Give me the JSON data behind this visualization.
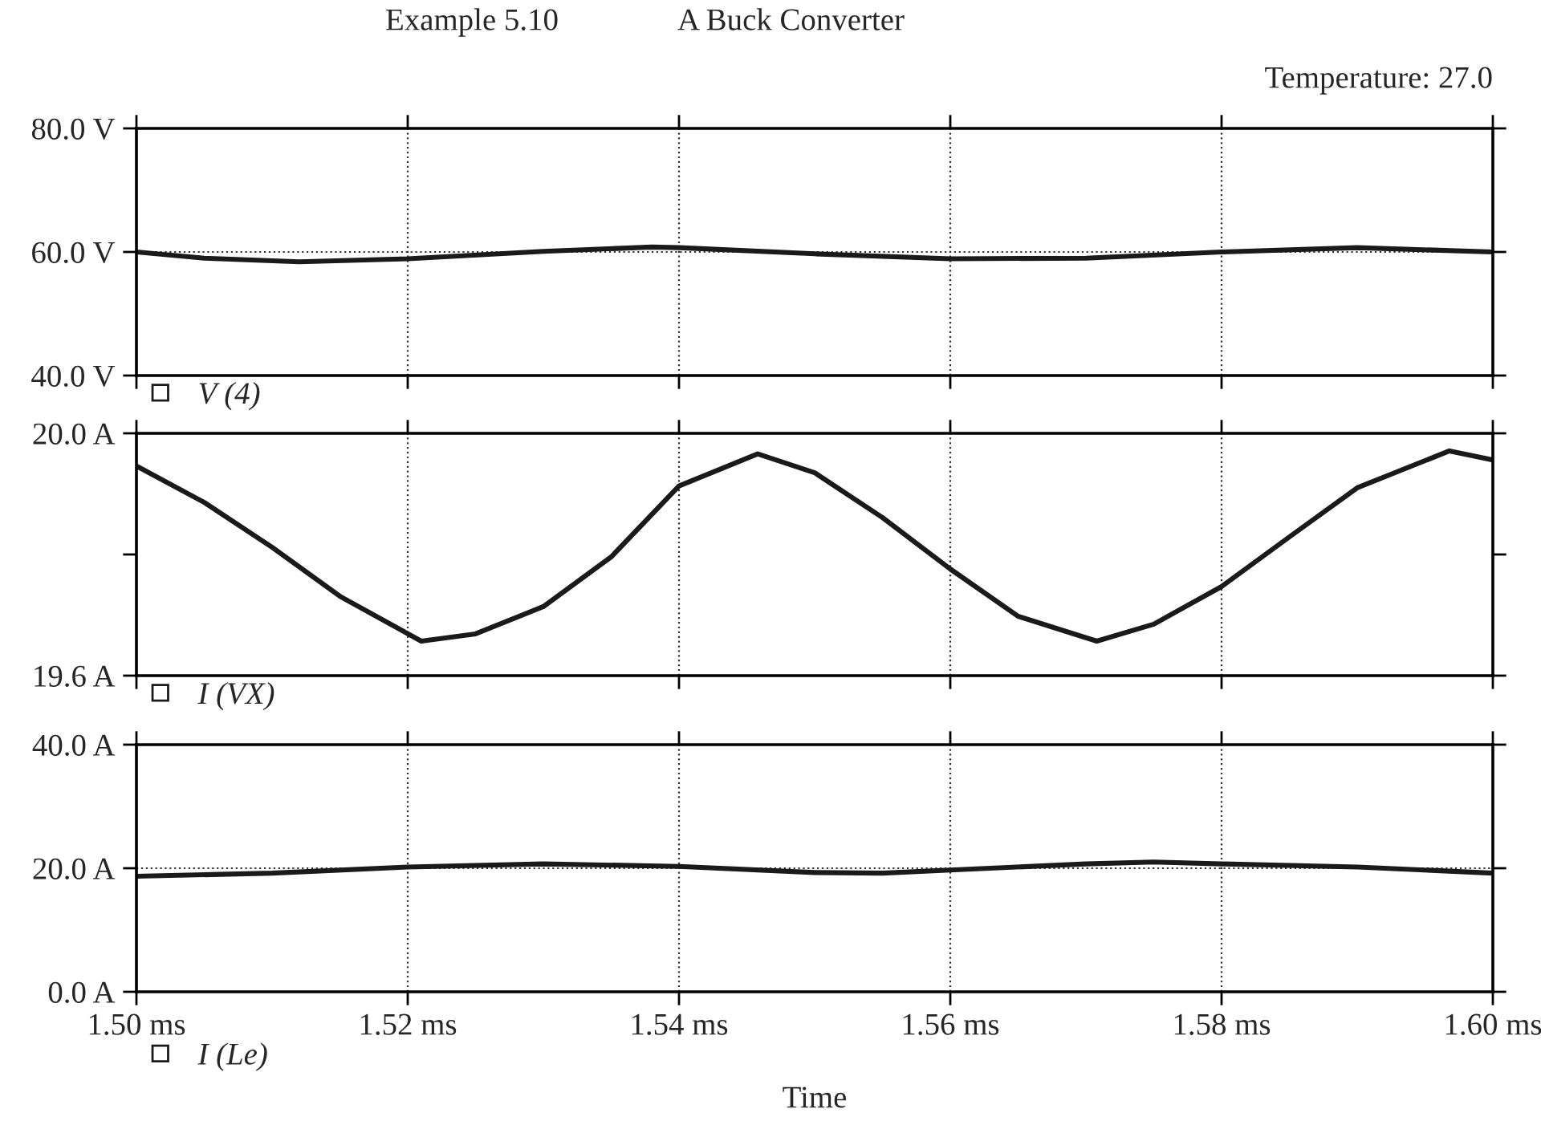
{
  "chart_data": [
    {
      "type": "line",
      "title": "Example 5.10",
      "subtitle": "A Buck Converter",
      "annotations": [
        "Temperature: 27.0"
      ],
      "x": [
        1.5,
        1.505,
        1.512,
        1.52,
        1.53,
        1.538,
        1.54,
        1.55,
        1.56,
        1.57,
        1.58,
        1.59,
        1.6
      ],
      "series": [
        {
          "name": "V (4)",
          "color": "#1a1a1a",
          "values": [
            60.0,
            59.0,
            58.4,
            58.9,
            60.1,
            60.8,
            60.7,
            59.7,
            58.9,
            59.0,
            60.0,
            60.7,
            60.0
          ]
        }
      ],
      "xlim": [
        1.5,
        1.6
      ],
      "xticks": [
        1.5,
        1.52,
        1.54,
        1.56,
        1.58,
        1.6
      ],
      "ylim": [
        40,
        80
      ],
      "yticks": [
        {
          "value": 40,
          "label": "40.0 V"
        },
        {
          "value": 60,
          "label": "60.0 V"
        },
        {
          "value": 80,
          "label": "80.0 V"
        }
      ],
      "tick_labels": "y",
      "grid": true,
      "legend": "bottom left",
      "marker": "none",
      "line_style": "solid"
    },
    {
      "type": "line",
      "x": [
        1.5,
        1.505,
        1.51,
        1.515,
        1.521,
        1.525,
        1.53,
        1.535,
        1.54,
        1.5458,
        1.55,
        1.555,
        1.56,
        1.565,
        1.5708,
        1.575,
        1.58,
        1.585,
        1.59,
        1.5968,
        1.6
      ],
      "series": [
        {
          "name": "I (VX)",
          "color": "#1a1a1a",
          "values": [
            19.946,
            19.886,
            19.812,
            19.731,
            19.657,
            19.669,
            19.714,
            19.796,
            19.913,
            19.966,
            19.935,
            19.861,
            19.776,
            19.698,
            19.657,
            19.685,
            19.747,
            19.829,
            19.91,
            19.971,
            19.956
          ]
        }
      ],
      "xlim": [
        1.5,
        1.6
      ],
      "xticks": [
        1.5,
        1.52,
        1.54,
        1.56,
        1.58,
        1.6
      ],
      "ylim": [
        19.6,
        20.0
      ],
      "yticks": [
        {
          "value": 19.6,
          "label": "19.6 A"
        },
        {
          "value": 19.8,
          "label": null
        },
        {
          "value": 20.0,
          "label": "20.0 A"
        }
      ],
      "tick_labels": "y",
      "grid": "x",
      "legend": "bottom left",
      "marker": "none",
      "line_style": "solid"
    },
    {
      "type": "line",
      "xlabel": "Time",
      "x": [
        1.5,
        1.51,
        1.52,
        1.53,
        1.54,
        1.55,
        1.555,
        1.56,
        1.57,
        1.575,
        1.58,
        1.59,
        1.6
      ],
      "series": [
        {
          "name": "I (Le)",
          "color": "#1a1a1a",
          "values": [
            18.7,
            19.2,
            20.2,
            20.7,
            20.3,
            19.3,
            19.2,
            19.7,
            20.7,
            21.0,
            20.7,
            20.2,
            19.2
          ]
        }
      ],
      "xlim": [
        1.5,
        1.6
      ],
      "xticks": [
        {
          "value": 1.5,
          "label": "1.50 ms"
        },
        {
          "value": 1.52,
          "label": "1.52 ms"
        },
        {
          "value": 1.54,
          "label": "1.54 ms"
        },
        {
          "value": 1.56,
          "label": "1.56 ms"
        },
        {
          "value": 1.58,
          "label": "1.58 ms"
        },
        {
          "value": 1.6,
          "label": "1.60 ms"
        }
      ],
      "ylim": [
        0,
        40
      ],
      "yticks": [
        {
          "value": 0,
          "label": "0.0 A"
        },
        {
          "value": 20,
          "label": "20.0 A"
        },
        {
          "value": 40,
          "label": "40.0 A"
        }
      ],
      "grid": true,
      "legend": "bottom left",
      "marker": "none",
      "line_style": "solid"
    }
  ]
}
